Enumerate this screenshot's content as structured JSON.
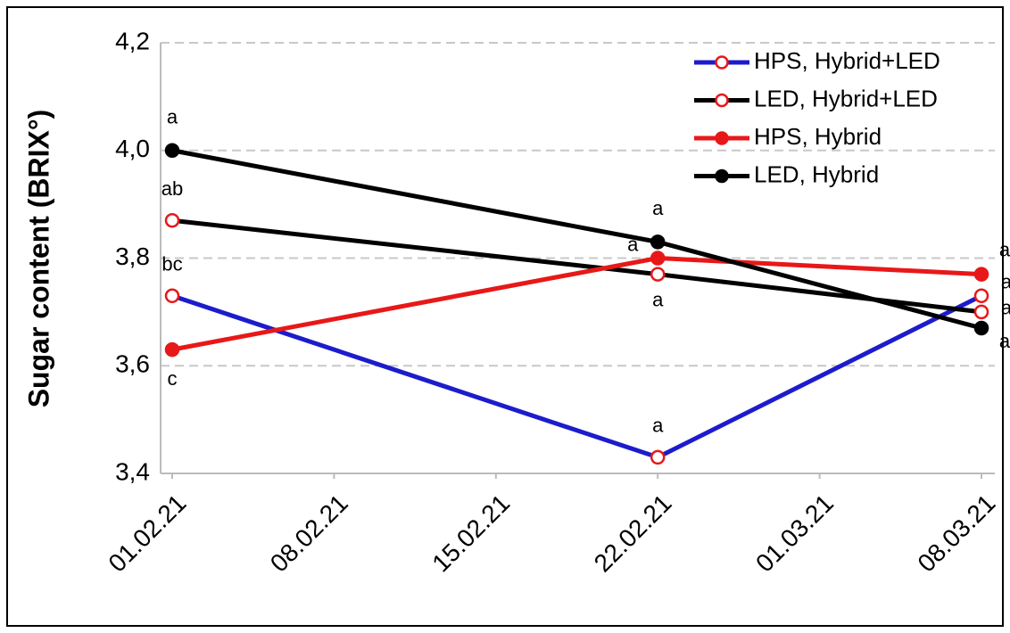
{
  "chart_data": {
    "type": "line",
    "y_label": "Sugar content (BRIX°)",
    "x": [
      "01.02.21",
      "22.02.21",
      "08.03.21"
    ],
    "xlim": [
      "01.02.21",
      "08.03.21"
    ],
    "xticks": [
      "01.02.21",
      "08.02.21",
      "15.02.21",
      "22.02.21",
      "01.03.21",
      "08.03.21"
    ],
    "ylim": [
      3.4,
      4.2
    ],
    "yticks": [
      {
        "value": 3.4,
        "label": "3,4"
      },
      {
        "value": 3.6,
        "label": "3,6"
      },
      {
        "value": 3.8,
        "label": "3,8"
      },
      {
        "value": 4.0,
        "label": "4,0"
      },
      {
        "value": 4.2,
        "label": "4,2"
      }
    ],
    "grid": true,
    "legend": "top-right",
    "series": [
      {
        "name": "HPS, Hybrid+LED",
        "color": "#1c1ccc",
        "marker": "open",
        "marker_color": "#e81818",
        "values": [
          3.73,
          3.43,
          3.73
        ],
        "point_labels": [
          "bc",
          "a",
          "a"
        ]
      },
      {
        "name": "LED, Hybrid+LED",
        "color": "#000000",
        "marker": "open",
        "marker_color": "#e81818",
        "values": [
          3.87,
          3.77,
          3.7
        ],
        "point_labels": [
          "ab",
          "a",
          "a"
        ]
      },
      {
        "name": "HPS, Hybrid",
        "color": "#e81818",
        "marker": "filled",
        "marker_color": "#e81818",
        "values": [
          3.63,
          3.8,
          3.77
        ],
        "point_labels": [
          "c",
          "a",
          "a"
        ]
      },
      {
        "name": "LED, Hybrid",
        "color": "#000000",
        "marker": "filled",
        "marker_color": "#000000",
        "values": [
          4.0,
          3.83,
          3.67
        ],
        "point_labels": [
          "a",
          "a",
          "a"
        ]
      }
    ]
  }
}
